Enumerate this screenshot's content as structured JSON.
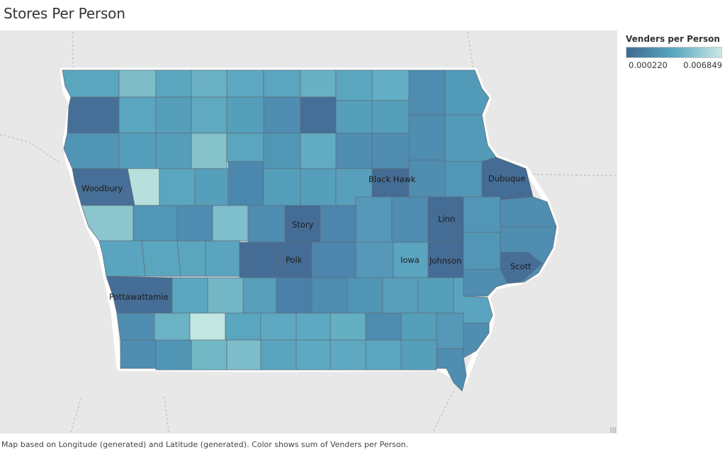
{
  "title": "Stores Per Person",
  "legend": {
    "title": "Venders per Person",
    "min_label": "0.000220",
    "max_label": "0.006849",
    "colors": [
      "#3f6b91",
      "#5aa7c0",
      "#c9e9e3"
    ]
  },
  "footer": "Map based on Longitude (generated) and Latitude (generated).  Color shows sum of Venders per Person.",
  "map": {
    "labels": [
      {
        "id": "woodbury",
        "text": "Woodbury"
      },
      {
        "id": "black-hawk",
        "text": "Black Hawk"
      },
      {
        "id": "dubuque",
        "text": "Dubuque"
      },
      {
        "id": "story",
        "text": "Story"
      },
      {
        "id": "linn",
        "text": "Linn"
      },
      {
        "id": "polk",
        "text": "Polk"
      },
      {
        "id": "iowa",
        "text": "Iowa"
      },
      {
        "id": "johnson",
        "text": "Johnson"
      },
      {
        "id": "scott",
        "text": "Scott"
      },
      {
        "id": "pottawattamie",
        "text": "Pottawattamie"
      }
    ]
  }
}
